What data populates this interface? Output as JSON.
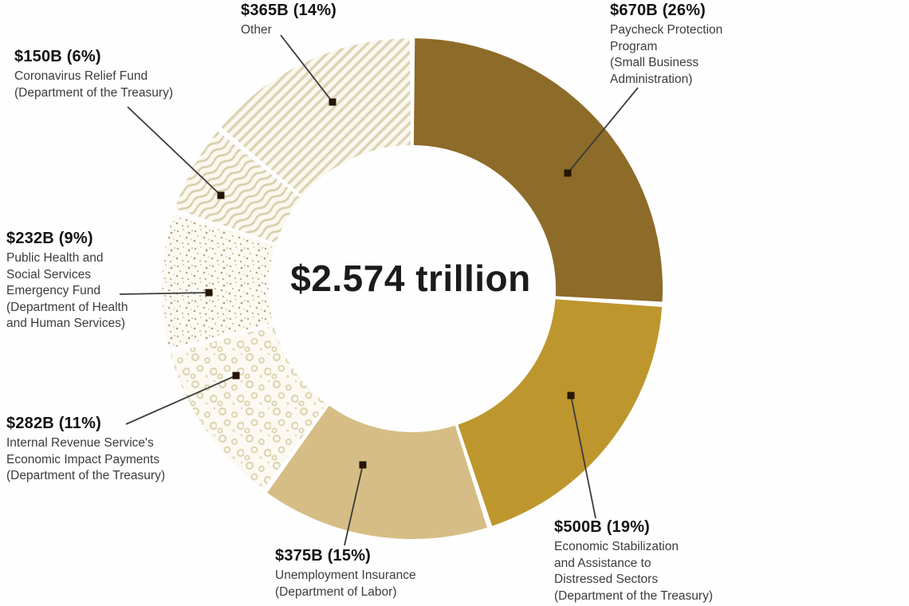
{
  "chart_data": {
    "type": "pie",
    "subtype": "donut",
    "center_label": "$2.574 trillion",
    "direction": "clockwise",
    "start_angle_deg": 0,
    "legend_position": "around",
    "segments": [
      {
        "amount": "$670B",
        "percent": 26,
        "heading": "$670B (26%)",
        "desc_lines": [
          "Paycheck Protection",
          "Program",
          "(Small Business",
          "Administration)"
        ],
        "style": "solid",
        "color": "#8d6b28"
      },
      {
        "amount": "$500B",
        "percent": 19,
        "heading": "$500B (19%)",
        "desc_lines": [
          "Economic Stabilization",
          "and Assistance to",
          "Distressed Sectors",
          "(Department of the Treasury)"
        ],
        "style": "solid",
        "color": "#bd962d"
      },
      {
        "amount": "$375B",
        "percent": 15,
        "heading": "$375B (15%)",
        "desc_lines": [
          "Unemployment Insurance",
          "(Department of Labor)"
        ],
        "style": "solid",
        "color": "#d6bd85"
      },
      {
        "amount": "$282B",
        "percent": 11,
        "heading": "$282B (11%)",
        "desc_lines": [
          "Internal Revenue Service's",
          "Economic Impact Payments",
          "(Department of the Treasury)"
        ],
        "style": "pattern",
        "pattern": "rings"
      },
      {
        "amount": "$232B",
        "percent": 9,
        "heading": "$232B (9%)",
        "desc_lines": [
          "Public Health and",
          "Social Services",
          "Emergency Fund",
          "(Department of Health",
          "and Human Services)"
        ],
        "style": "pattern",
        "pattern": "speckle"
      },
      {
        "amount": "$150B",
        "percent": 6,
        "heading": "$150B (6%)",
        "desc_lines": [
          "Coronavirus Relief Fund",
          "(Department of the Treasury)"
        ],
        "style": "pattern",
        "pattern": "waves"
      },
      {
        "amount": "$365B",
        "percent": 14,
        "heading": "$365B (14%)",
        "desc_lines": [
          "Other"
        ],
        "style": "pattern",
        "pattern": "hatch"
      }
    ],
    "colors": {
      "segment_dark_gold": "#8d6b28",
      "segment_gold": "#bd962d",
      "segment_tan": "#d6bd85",
      "pattern_stroke": "#dbd3b3",
      "pattern_background": "#faf8ee",
      "leader_line": "#3b3b3b",
      "leader_dot": "#241505",
      "text_heading": "#121212",
      "text_body": "#3c3c3c"
    }
  }
}
